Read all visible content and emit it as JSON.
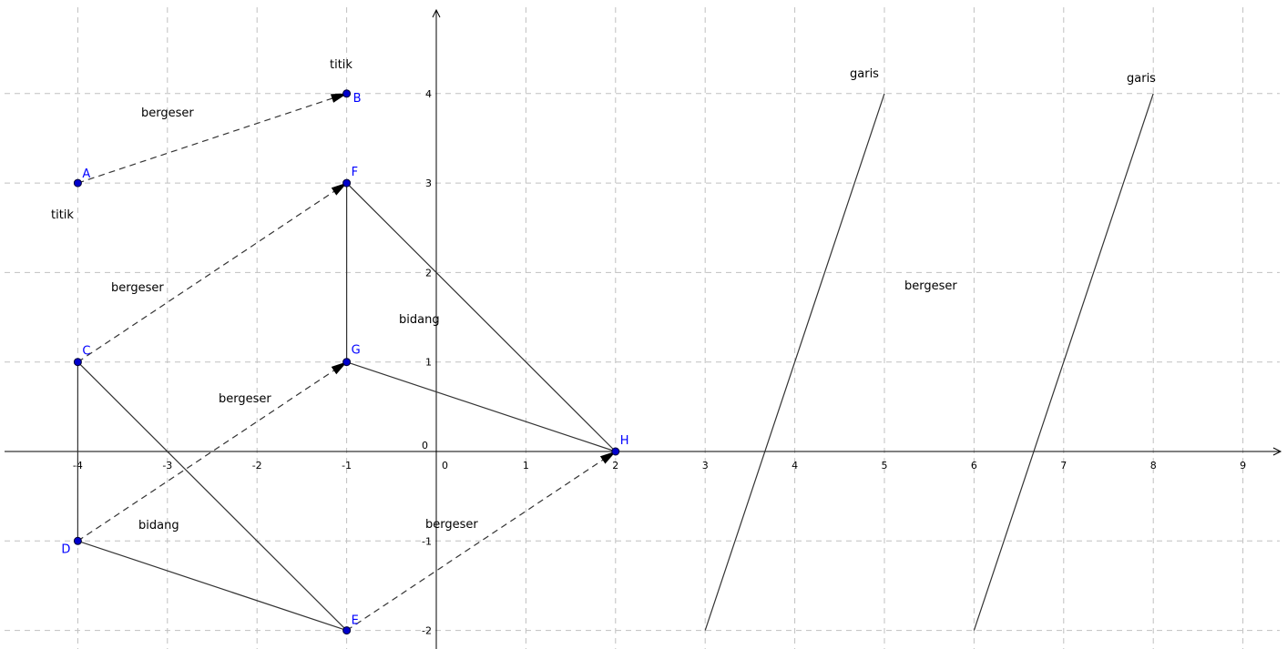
{
  "axes": {
    "x_ticks": [
      -4,
      -3,
      -2,
      -1,
      1,
      2,
      3,
      4,
      5,
      6,
      7,
      8,
      9
    ],
    "y_ticks": [
      -2,
      -1,
      1,
      2,
      3,
      4
    ],
    "origin_label": "0",
    "x_zero_label": "0",
    "grid": true
  },
  "points": [
    {
      "name": "A",
      "x": -4,
      "y": 3
    },
    {
      "name": "B",
      "x": -1,
      "y": 4
    },
    {
      "name": "C",
      "x": -4,
      "y": 1
    },
    {
      "name": "D",
      "x": -4,
      "y": -1
    },
    {
      "name": "E",
      "x": -1,
      "y": -2
    },
    {
      "name": "F",
      "x": -1,
      "y": 3
    },
    {
      "name": "G",
      "x": -1,
      "y": 1
    },
    {
      "name": "H",
      "x": 2,
      "y": 0
    }
  ],
  "segments": [
    {
      "from": [
        -4,
        1
      ],
      "to": [
        -4,
        -1
      ]
    },
    {
      "from": [
        -4,
        1
      ],
      "to": [
        -1,
        -2
      ]
    },
    {
      "from": [
        -4,
        -1
      ],
      "to": [
        -1,
        -2
      ]
    },
    {
      "from": [
        -1,
        3
      ],
      "to": [
        -1,
        1
      ]
    },
    {
      "from": [
        -1,
        3
      ],
      "to": [
        2,
        0
      ]
    },
    {
      "from": [
        -1,
        1
      ],
      "to": [
        2,
        0
      ]
    },
    {
      "from": [
        3,
        -2
      ],
      "to": [
        5,
        4
      ]
    },
    {
      "from": [
        6,
        -2
      ],
      "to": [
        8,
        4
      ]
    }
  ],
  "vectors": [
    {
      "from": [
        -4,
        3
      ],
      "to": [
        -1,
        4
      ]
    },
    {
      "from": [
        -4,
        1
      ],
      "to": [
        -1,
        3
      ]
    },
    {
      "from": [
        -4,
        -1
      ],
      "to": [
        -1,
        1
      ]
    },
    {
      "from": [
        -1,
        -2
      ],
      "to": [
        2,
        0
      ]
    }
  ],
  "labels": {
    "titik_b": "titik",
    "titik_a": "titik",
    "bergeser_ab": "bergeser",
    "bergeser_cf": "bergeser",
    "bergeser_dg": "bergeser",
    "bergeser_eh": "bergeser",
    "bergeser_lines": "bergeser",
    "bidang_top": "bidang",
    "bidang_bottom": "bidang",
    "garis_1": "garis",
    "garis_2": "garis"
  }
}
